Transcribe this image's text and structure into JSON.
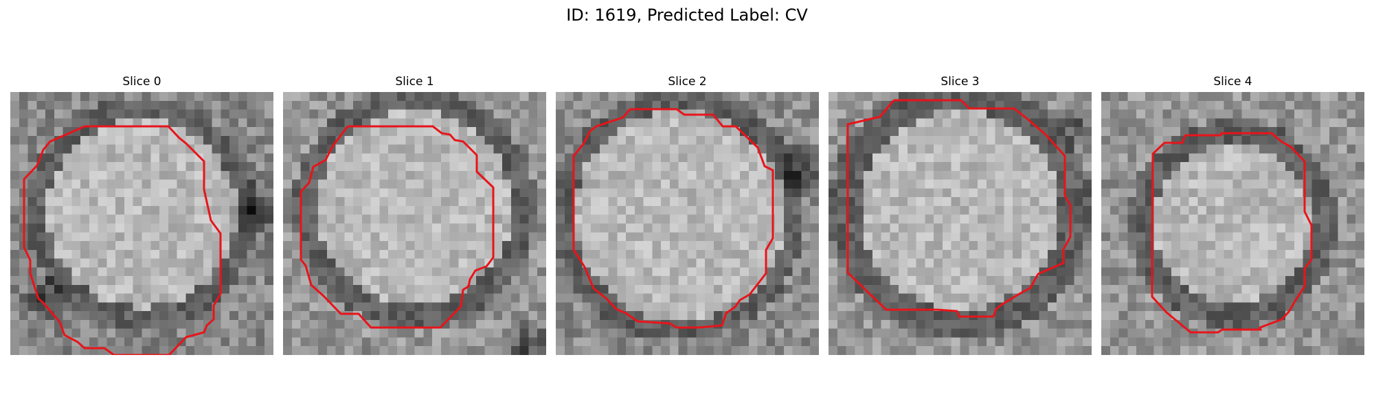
{
  "figure": {
    "title": "ID: 1619, Predicted Label: CV"
  },
  "colors": {
    "contour": "#e8141a",
    "background": "#ffffff"
  },
  "slices": [
    {
      "label": "Slice 0",
      "image": "grayscale micrograph of a round vesicle with a darker surrounding ring",
      "contour_color": "#e8141a"
    },
    {
      "label": "Slice 1",
      "image": "grayscale micrograph of a round vesicle with a dark patch at the lower right",
      "contour_color": "#e8141a"
    },
    {
      "label": "Slice 2",
      "image": "grayscale micrograph of a round vesicle with a dark region on the right edge",
      "contour_color": "#e8141a"
    },
    {
      "label": "Slice 3",
      "image": "grayscale micrograph of a round vesicle with a dark surrounding membrane ring",
      "contour_color": "#e8141a"
    },
    {
      "label": "Slice 4",
      "image": "grayscale micrograph of a smaller round vesicle with a dark ring",
      "contour_color": "#e8141a"
    }
  ]
}
